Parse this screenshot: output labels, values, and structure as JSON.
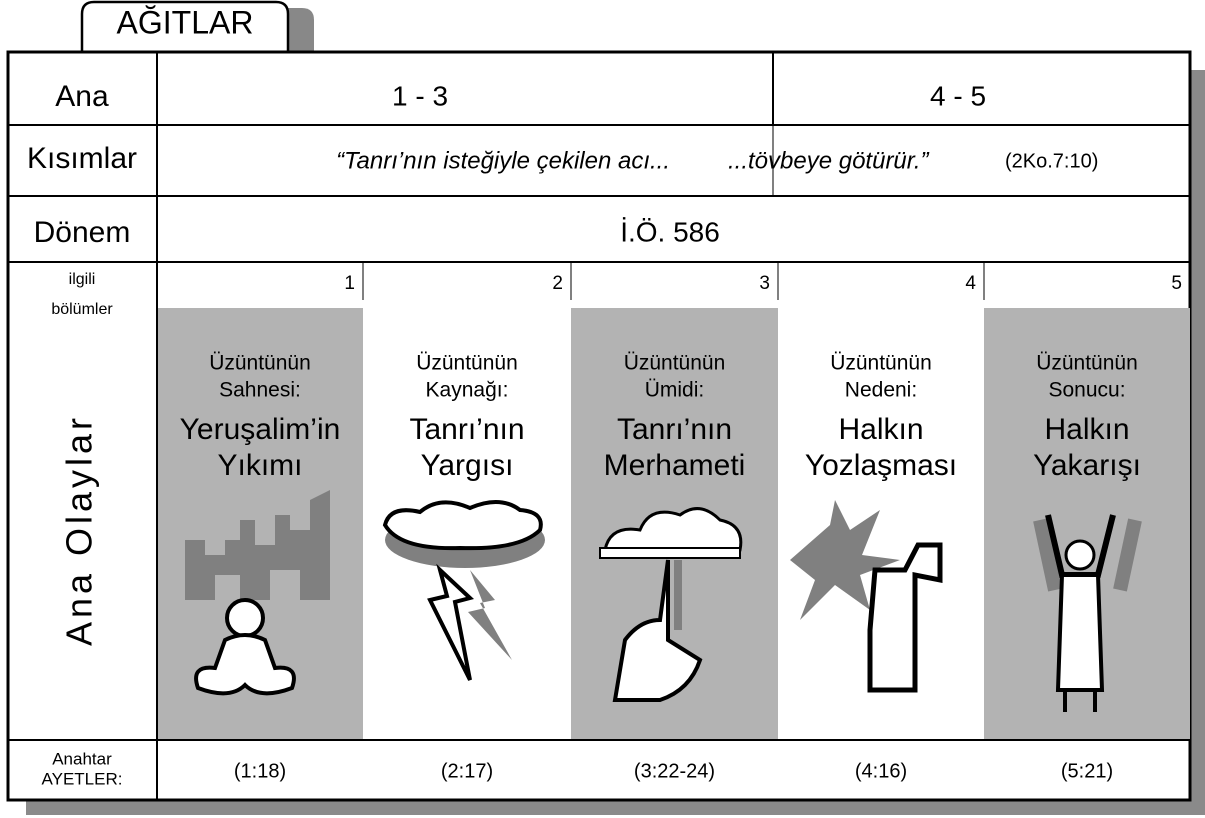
{
  "title": "AĞITLAR",
  "row_labels": {
    "sections": [
      "Ana",
      "Kısımlar"
    ],
    "period": "Dönem",
    "chapters": [
      "ilgili",
      "bölümler"
    ],
    "events": "Ana Olaylar",
    "key_verses": [
      "Anahtar",
      "AYETLER:"
    ]
  },
  "sections": [
    "1 - 3",
    "4 - 5"
  ],
  "quote": {
    "part1": "“Tanrı’nın isteğiyle çekilen acı...",
    "part2": "...tövbeye götürür.”",
    "ref": "(2Ko.7:10)"
  },
  "period": "İ.Ö. 586",
  "chapters": [
    {
      "number": 1,
      "subtitle": [
        "Üzüntünün",
        "Sahnesi:"
      ],
      "title": [
        "Yeruşalim’in",
        "Yıkımı"
      ],
      "key_verse": "(1:18)"
    },
    {
      "number": 2,
      "subtitle": [
        "Üzüntünün",
        "Kaynağı:"
      ],
      "title": [
        "Tanrı’nın",
        "Yargısı"
      ],
      "key_verse": "(2:17)"
    },
    {
      "number": 3,
      "subtitle": [
        "Üzüntünün",
        "Ümidi:"
      ],
      "title": [
        "Tanrı’nın",
        "Merhameti"
      ],
      "key_verse": "(3:22-24)"
    },
    {
      "number": 4,
      "subtitle": [
        "Üzüntünün",
        "Nedeni:"
      ],
      "title": [
        "Halkın",
        "Yozlaşması"
      ],
      "key_verse": "(4:16)"
    },
    {
      "number": 5,
      "subtitle": [
        "Üzüntünün",
        "Sonucu:"
      ],
      "title": [
        "Halkın",
        "Yakarışı"
      ],
      "key_verse": "(5:21)"
    }
  ]
}
